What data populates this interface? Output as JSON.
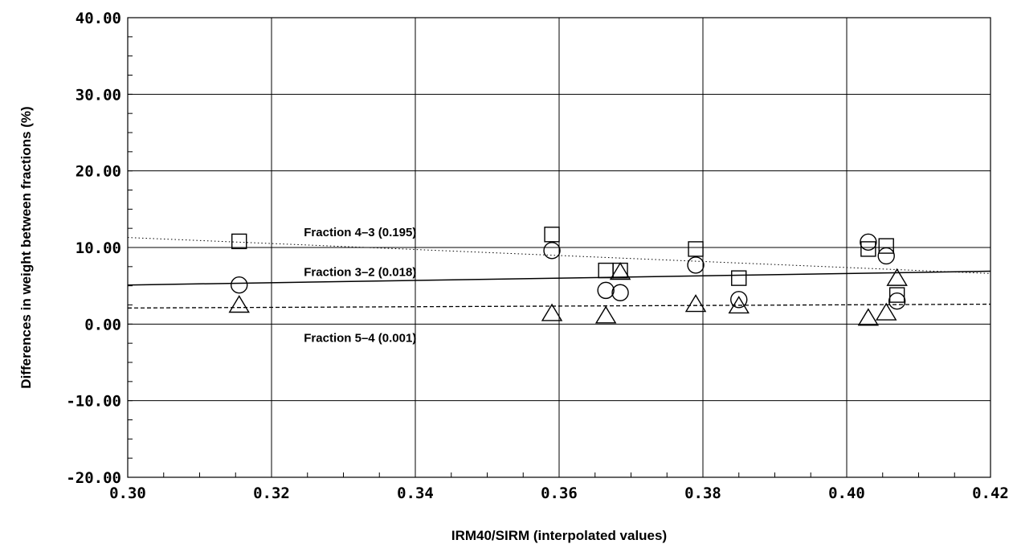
{
  "chart_data": {
    "type": "scatter",
    "title": "",
    "xlabel": "IRM40/SIRM (interpolated values)",
    "ylabel": "Differences in weight between fractions (%)",
    "xlim": [
      0.3,
      0.42
    ],
    "ylim": [
      -20.0,
      40.0
    ],
    "x_ticks": [
      "0.30",
      "0.32",
      "0.34",
      "0.36",
      "0.38",
      "0.40",
      "0.42"
    ],
    "y_ticks": [
      "-20.00",
      "-10.00",
      "0.00",
      "10.00",
      "20.00",
      "30.00",
      "40.00"
    ],
    "x_tick_values": [
      0.3,
      0.32,
      0.34,
      0.36,
      0.38,
      0.4,
      0.42
    ],
    "y_tick_values": [
      -20,
      -10,
      0,
      10,
      20,
      30,
      40
    ],
    "grid": true,
    "series": [
      {
        "marker": "square",
        "line_style": "dotted",
        "fit_label": "Fraction 4–3 (0.195)",
        "fit_line": [
          [
            0.3,
            11.3
          ],
          [
            0.42,
            6.6
          ]
        ],
        "points": [
          [
            0.3155,
            10.8
          ],
          [
            0.359,
            11.7
          ],
          [
            0.3665,
            7.0
          ],
          [
            0.3685,
            7.0
          ],
          [
            0.379,
            9.8
          ],
          [
            0.385,
            6.0
          ],
          [
            0.403,
            9.8
          ],
          [
            0.4055,
            10.2
          ],
          [
            0.407,
            3.8
          ]
        ]
      },
      {
        "marker": "circle",
        "line_style": "solid",
        "fit_label": "Fraction 3–2 (0.018)",
        "fit_line": [
          [
            0.3,
            5.1
          ],
          [
            0.42,
            6.9
          ]
        ],
        "points": [
          [
            0.3155,
            5.1
          ],
          [
            0.359,
            9.6
          ],
          [
            0.3665,
            4.4
          ],
          [
            0.3685,
            4.1
          ],
          [
            0.379,
            7.7
          ],
          [
            0.385,
            3.2
          ],
          [
            0.403,
            10.7
          ],
          [
            0.4055,
            8.9
          ],
          [
            0.407,
            3.0
          ]
        ]
      },
      {
        "marker": "triangle",
        "line_style": "dashed",
        "fit_label": "Fraction 5–4 (0.001)",
        "fit_line": [
          [
            0.3,
            2.1
          ],
          [
            0.42,
            2.6
          ]
        ],
        "points": [
          [
            0.3155,
            2.5
          ],
          [
            0.359,
            1.4
          ],
          [
            0.3665,
            1.1
          ],
          [
            0.3685,
            6.8
          ],
          [
            0.379,
            2.6
          ],
          [
            0.385,
            2.4
          ],
          [
            0.403,
            0.8
          ],
          [
            0.4055,
            1.5
          ],
          [
            0.407,
            6.0
          ]
        ]
      }
    ]
  }
}
